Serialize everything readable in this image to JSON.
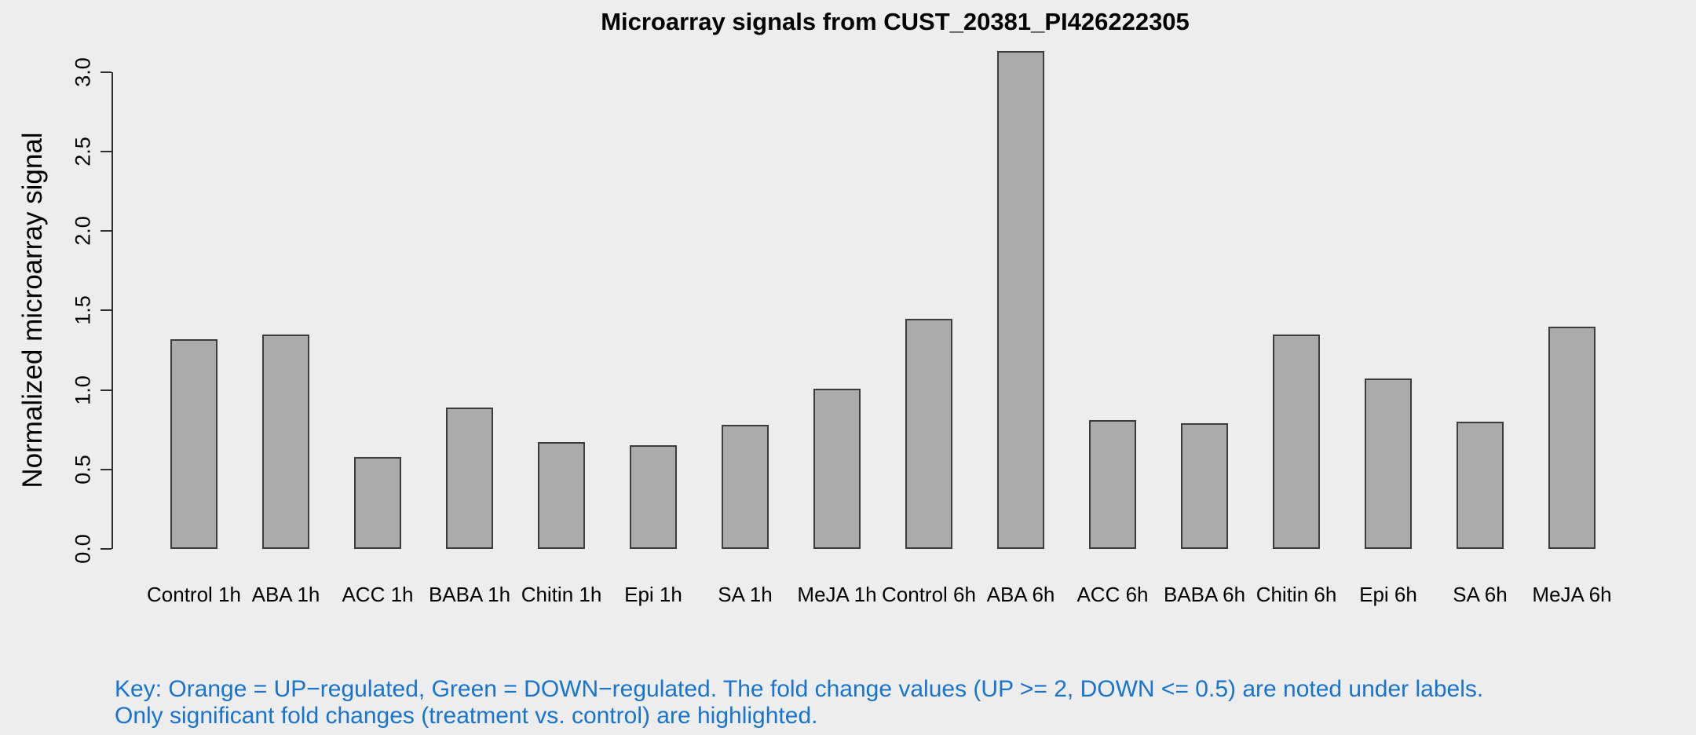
{
  "chart_data": {
    "type": "bar",
    "title": "Microarray signals from CUST_20381_PI426222305",
    "xlabel": "",
    "ylabel": "Normalized microarray signal",
    "categories": [
      "Control 1h",
      "ABA 1h",
      "ACC 1h",
      "BABA 1h",
      "Chitin 1h",
      "Epi 1h",
      "SA 1h",
      "MeJA 1h",
      "Control 6h",
      "ABA 6h",
      "ACC 6h",
      "BABA 6h",
      "Chitin 6h",
      "Epi 6h",
      "SA 6h",
      "MeJA 6h"
    ],
    "values": [
      1.32,
      1.35,
      0.58,
      0.89,
      0.67,
      0.65,
      0.78,
      1.01,
      1.45,
      3.13,
      0.81,
      0.79,
      1.35,
      1.07,
      0.8,
      1.4
    ],
    "yticks": [
      0.0,
      0.5,
      1.0,
      1.5,
      2.0,
      2.5,
      3.0
    ],
    "ylim": [
      0.0,
      3.0
    ],
    "grid": false,
    "legend": "none",
    "bar_fill_color": "#ABABAB",
    "bar_border_color": "#3C3C3C",
    "background_color": "#EDEDED"
  },
  "key": {
    "line1": "Key: Orange = UP−regulated, Green = DOWN−regulated. The fold change values (UP >= 2, DOWN <= 0.5) are noted under labels.",
    "line2": "Only significant fold changes (treatment vs. control) are highlighted.",
    "text_color": "#1874CD"
  }
}
